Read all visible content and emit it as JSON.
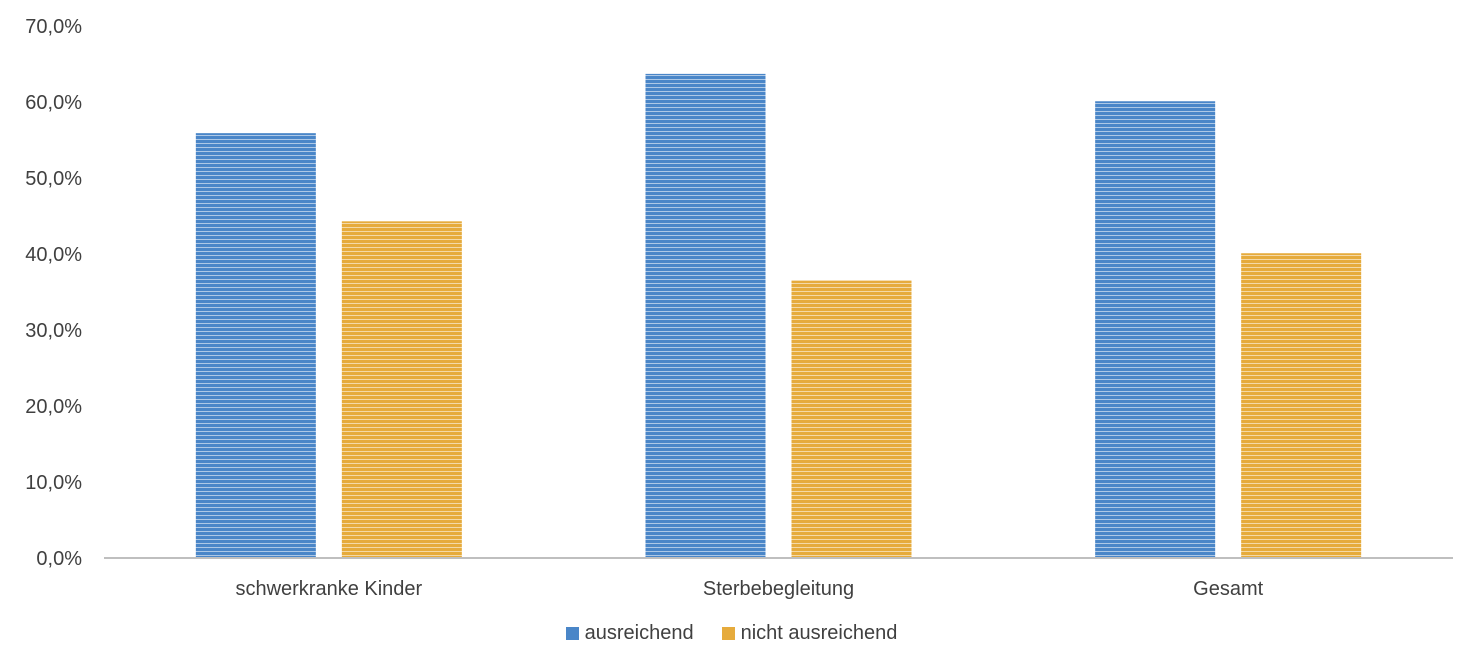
{
  "chart_data": {
    "type": "bar",
    "categories": [
      "schwerkranke Kinder",
      "Sterbebegleitung",
      "Gesamt"
    ],
    "series": [
      {
        "name": "ausreichend",
        "values": [
          55.9,
          63.7,
          60.1
        ],
        "color": "#4a86c8"
      },
      {
        "name": "nicht ausreichend",
        "values": [
          44.3,
          36.5,
          40.1
        ],
        "color": "#e6ab3c"
      }
    ],
    "ylim": [
      0,
      70
    ],
    "yticks": [
      "0,0%",
      "10,0%",
      "20,0%",
      "30,0%",
      "40,0%",
      "50,0%",
      "60,0%",
      "70,0%"
    ],
    "grid": false,
    "legend_position": "bottom",
    "bar_fill": "horizontal-striped"
  }
}
